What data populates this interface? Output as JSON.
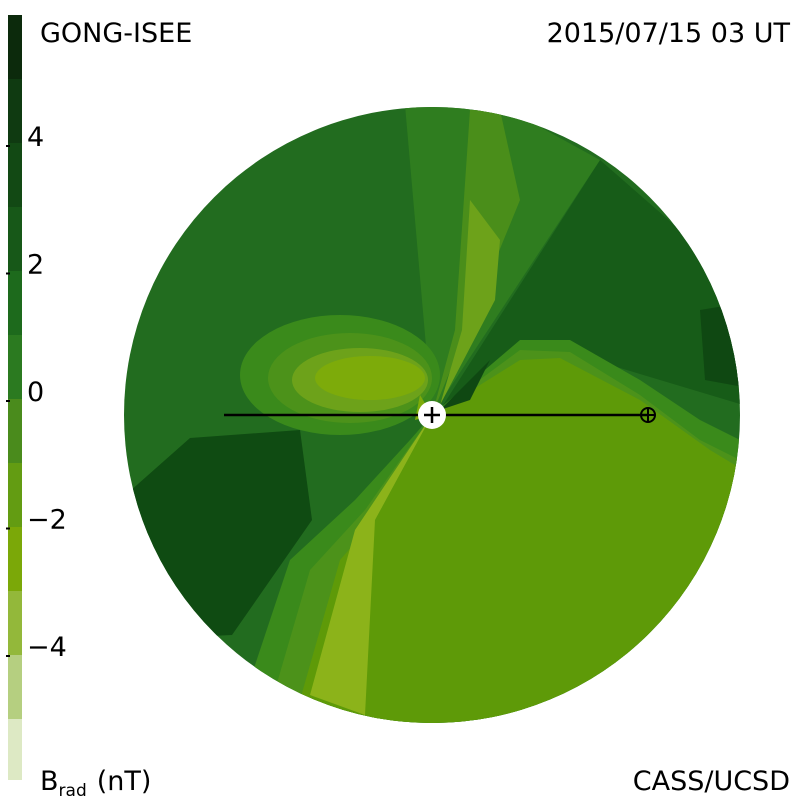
{
  "header": {
    "source": "GONG-ISEE",
    "date": "2015/07/15 03 UT"
  },
  "colorbar": {
    "ticks": [
      "4",
      "2",
      "0",
      "−2",
      "−4"
    ],
    "label": {
      "symbol": "B",
      "subscript": "rad",
      "unit": "(nT)"
    }
  },
  "footer": {
    "credit": "CASS/UCSD"
  }
}
